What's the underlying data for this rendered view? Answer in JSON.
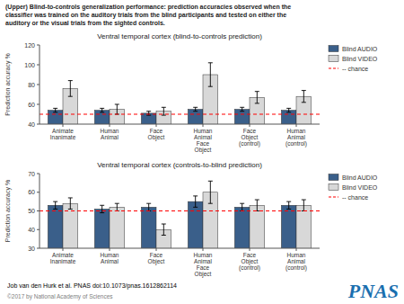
{
  "title": "(Upper) Blind-to-controls generalization performance: prediction accuracies observed when the\nclassifier was trained on the auditory trials from the blind participants and tested on either the\nauditory or the visual trials from the sighted controls.",
  "annotations": [
    {
      "text": "Job van den Hurk et al. PNAS doi:10.1073/pnas.1612862114"
    },
    {
      "text": "PNAS",
      "color": "#1a6faf"
    },
    {
      "text": "©2017 by National Academy of Sciences",
      "color": "gray"
    }
  ],
  "chart_data": [
    {
      "type": "bar",
      "title": "Ventral temporal cortex (blind-to-controls prediction)",
      "y_label": "Prediction accuracy %",
      "categories": [
        "Animate\nInanimate",
        "Human\nAnimal",
        "Face\nObject",
        "Human\nAnimal\nFace\nObject",
        "Face\nObject\n(control)",
        "Human\nAnimal\n(control)"
      ],
      "series": [
        {
          "name": "Blind AUDIO",
          "color": "#3a5f8a",
          "values": [
            54,
            54,
            51,
            55,
            55,
            54
          ],
          "errors": [
            2,
            2,
            2,
            2,
            2,
            2
          ]
        },
        {
          "name": "Blind VIDEO",
          "color": "#d8d8d8",
          "values": [
            76,
            55,
            53,
            90,
            67,
            68
          ],
          "errors": [
            8,
            5,
            4,
            12,
            6,
            6
          ]
        }
      ],
      "lines": [
        {
          "name": "-- chance",
          "value": 50,
          "color": "red",
          "line_style": "dashed"
        }
      ],
      "ylim": [
        40,
        120
      ],
      "yticks": [
        40,
        60,
        80,
        100,
        120
      ],
      "grid": false,
      "legend": "upper right"
    },
    {
      "type": "bar",
      "title": "Ventral temporal cortex (controls-to-blind prediction)",
      "y_label": "Prediction accuracy %",
      "categories": [
        "Animate\nInanimate",
        "Human\nAnimal",
        "Face\nObject",
        "Human\nAnimal\nFace\nObject",
        "Face\nObject\n(control)",
        "Human\nAnimal\n(control)"
      ],
      "series": [
        {
          "name": "Blind AUDIO",
          "color": "#3a5f8a",
          "values": [
            53,
            51,
            52,
            55,
            52,
            53
          ],
          "errors": [
            2,
            2,
            2,
            3,
            2,
            2
          ]
        },
        {
          "name": "Blind VIDEO",
          "color": "#d8d8d8",
          "values": [
            54,
            52,
            40,
            60,
            53,
            53
          ],
          "errors": [
            3,
            2,
            3,
            6,
            3,
            3
          ]
        }
      ],
      "lines": [
        {
          "name": "-- chance",
          "value": 50,
          "color": "red",
          "line_style": "dashed"
        }
      ],
      "ylim": [
        30,
        70
      ],
      "yticks": [
        30,
        40,
        50,
        60,
        70
      ],
      "grid": false,
      "legend": "upper right"
    }
  ]
}
